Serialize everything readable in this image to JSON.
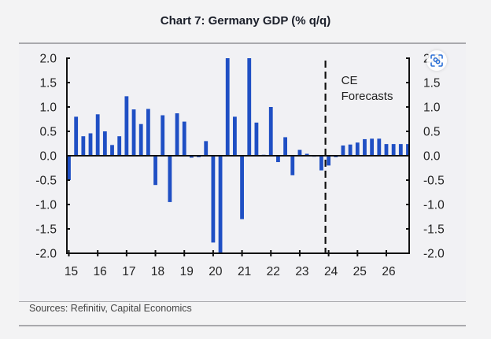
{
  "title": "Chart 7: Germany GDP (% q/q)",
  "sources": "Sources: Refinitiv, Capital Economics",
  "overlay": {
    "lens_button_icon": "visual-search-icon"
  },
  "colors": {
    "bar": "#1f4fc4",
    "axis": "#111111",
    "text": "#222222"
  },
  "chart_data": {
    "type": "bar",
    "title": "Chart 7: Germany GDP (% q/q)",
    "xlabel": "",
    "ylabel": "",
    "ylim": [
      -2.0,
      2.0
    ],
    "yticks": [
      "2.0",
      "1.5",
      "1.0",
      "0.5",
      "0.0",
      "-0.5",
      "-1.0",
      "-1.5",
      "-2.0"
    ],
    "ytick_values": [
      2.0,
      1.5,
      1.0,
      0.5,
      0.0,
      -0.5,
      -1.0,
      -1.5,
      -2.0
    ],
    "xticks": [
      "15",
      "16",
      "17",
      "18",
      "19",
      "20",
      "21",
      "22",
      "23",
      "24",
      "25",
      "26"
    ],
    "dual_y_axis": true,
    "grid": false,
    "annotation": {
      "text_line1": "CE",
      "text_line2": "Forecasts",
      "forecast_start": "2024Q1"
    },
    "categories": [
      "2015Q1",
      "2015Q2",
      "2015Q3",
      "2015Q4",
      "2016Q1",
      "2016Q2",
      "2016Q3",
      "2016Q4",
      "2017Q1",
      "2017Q2",
      "2017Q3",
      "2017Q4",
      "2018Q1",
      "2018Q2",
      "2018Q3",
      "2018Q4",
      "2019Q1",
      "2019Q2",
      "2019Q3",
      "2019Q4",
      "2020Q1",
      "2020Q2",
      "2020Q3",
      "2020Q4",
      "2021Q1",
      "2021Q2",
      "2021Q3",
      "2021Q4",
      "2022Q1",
      "2022Q2",
      "2022Q3",
      "2022Q4",
      "2023Q1",
      "2023Q2",
      "2023Q3",
      "2023Q4",
      "2024Q1",
      "2024Q2",
      "2024Q3",
      "2024Q4",
      "2025Q1",
      "2025Q2",
      "2025Q3",
      "2025Q4",
      "2026Q1",
      "2026Q2",
      "2026Q3",
      "2026Q4"
    ],
    "series": [
      {
        "name": "Germany GDP (% q/q)",
        "values": [
          -0.5,
          0.8,
          0.4,
          0.46,
          0.85,
          0.5,
          0.22,
          0.4,
          1.22,
          0.95,
          0.65,
          0.96,
          -0.6,
          0.83,
          -0.95,
          0.87,
          0.7,
          -0.04,
          -0.03,
          0.3,
          -1.78,
          -2.0,
          2.0,
          0.8,
          -1.3,
          2.0,
          0.68,
          0.02,
          1.0,
          -0.13,
          0.38,
          -0.4,
          0.12,
          0.04,
          -0.02,
          -0.3,
          -0.2,
          -0.03,
          0.21,
          0.23,
          0.27,
          0.34,
          0.35,
          0.35,
          0.24,
          0.24,
          0.24,
          0.24
        ]
      }
    ]
  }
}
